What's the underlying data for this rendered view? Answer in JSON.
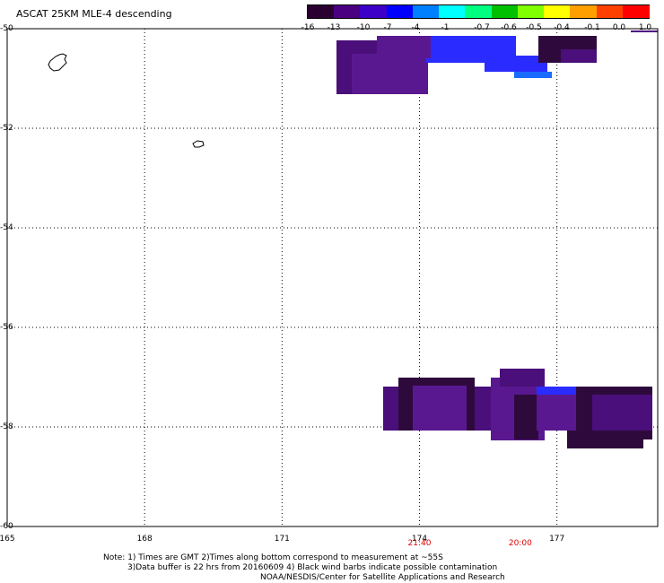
{
  "title": "ASCAT 25KM MLE-4 descending",
  "colorbar": {
    "labels": [
      "-16",
      "-13",
      "-10",
      "-7",
      "-4",
      "-1",
      "-0.7",
      "-0.6",
      "-0.5",
      "-0.4",
      "-0.1",
      "0.0",
      "1.0"
    ],
    "colors": [
      "#2a0030",
      "#4b0082",
      "#3d00c8",
      "#0000ff",
      "#0080ff",
      "#00ffff",
      "#00ff80",
      "#00c000",
      "#80ff00",
      "#ffff00",
      "#ffa000",
      "#ff4000",
      "#ff0000"
    ]
  },
  "map": {
    "x_ticks": [
      "165",
      "168",
      "171",
      "174",
      "177"
    ],
    "y_ticks": [
      "-50",
      "-52",
      "-54",
      "-56",
      "-58",
      "-60"
    ],
    "lon_range": [
      165,
      179.2
    ],
    "lat_range": [
      -50,
      -60
    ],
    "gridlines": "dotted",
    "times": [
      {
        "label": "21:40",
        "lon": 174
      },
      {
        "label": "20:00",
        "lon": 176.2
      }
    ],
    "pixel_colors": {
      "dark": "#2e0a3c",
      "purple": "#4a0f7a",
      "violet": "#5a1890",
      "blue": "#2a2cff",
      "lightblue": "#1a6bff"
    }
  },
  "notes": {
    "line1": "Note: 1) Times are GMT 2)Times along bottom correspond to measurement at ~55S",
    "line2": "3)Data buffer is 22 hrs from 20160609 4) Black wind barbs indicate possible contamination",
    "line3": "NOAA/NESDIS/Center for Satellite Applications and Research"
  }
}
